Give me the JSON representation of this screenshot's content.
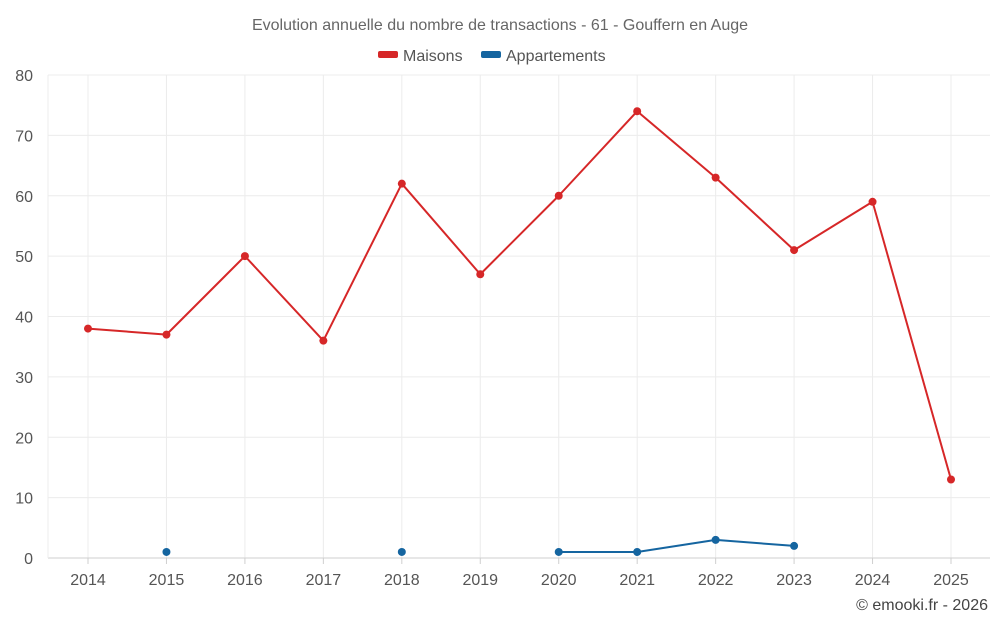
{
  "chart_data": {
    "type": "line",
    "title": "Evolution annuelle du nombre de transactions - 61 - Gouffern en Auge",
    "categories": [
      "2014",
      "2015",
      "2016",
      "2017",
      "2018",
      "2019",
      "2020",
      "2021",
      "2022",
      "2023",
      "2024",
      "2025"
    ],
    "ylim": [
      0,
      80
    ],
    "yticks": [
      0,
      10,
      20,
      30,
      40,
      50,
      60,
      70,
      80
    ],
    "grid": true,
    "legend": "top-center",
    "series": [
      {
        "name": "Maisons",
        "color": "#d62728",
        "values": [
          38,
          37,
          50,
          36,
          62,
          47,
          60,
          74,
          63,
          51,
          59,
          13
        ]
      },
      {
        "name": "Appartements",
        "color": "#1565a0",
        "values": [
          null,
          1,
          null,
          null,
          1,
          null,
          1,
          1,
          3,
          2,
          null,
          null
        ]
      }
    ],
    "credit": "© emooki.fr - 2026"
  }
}
